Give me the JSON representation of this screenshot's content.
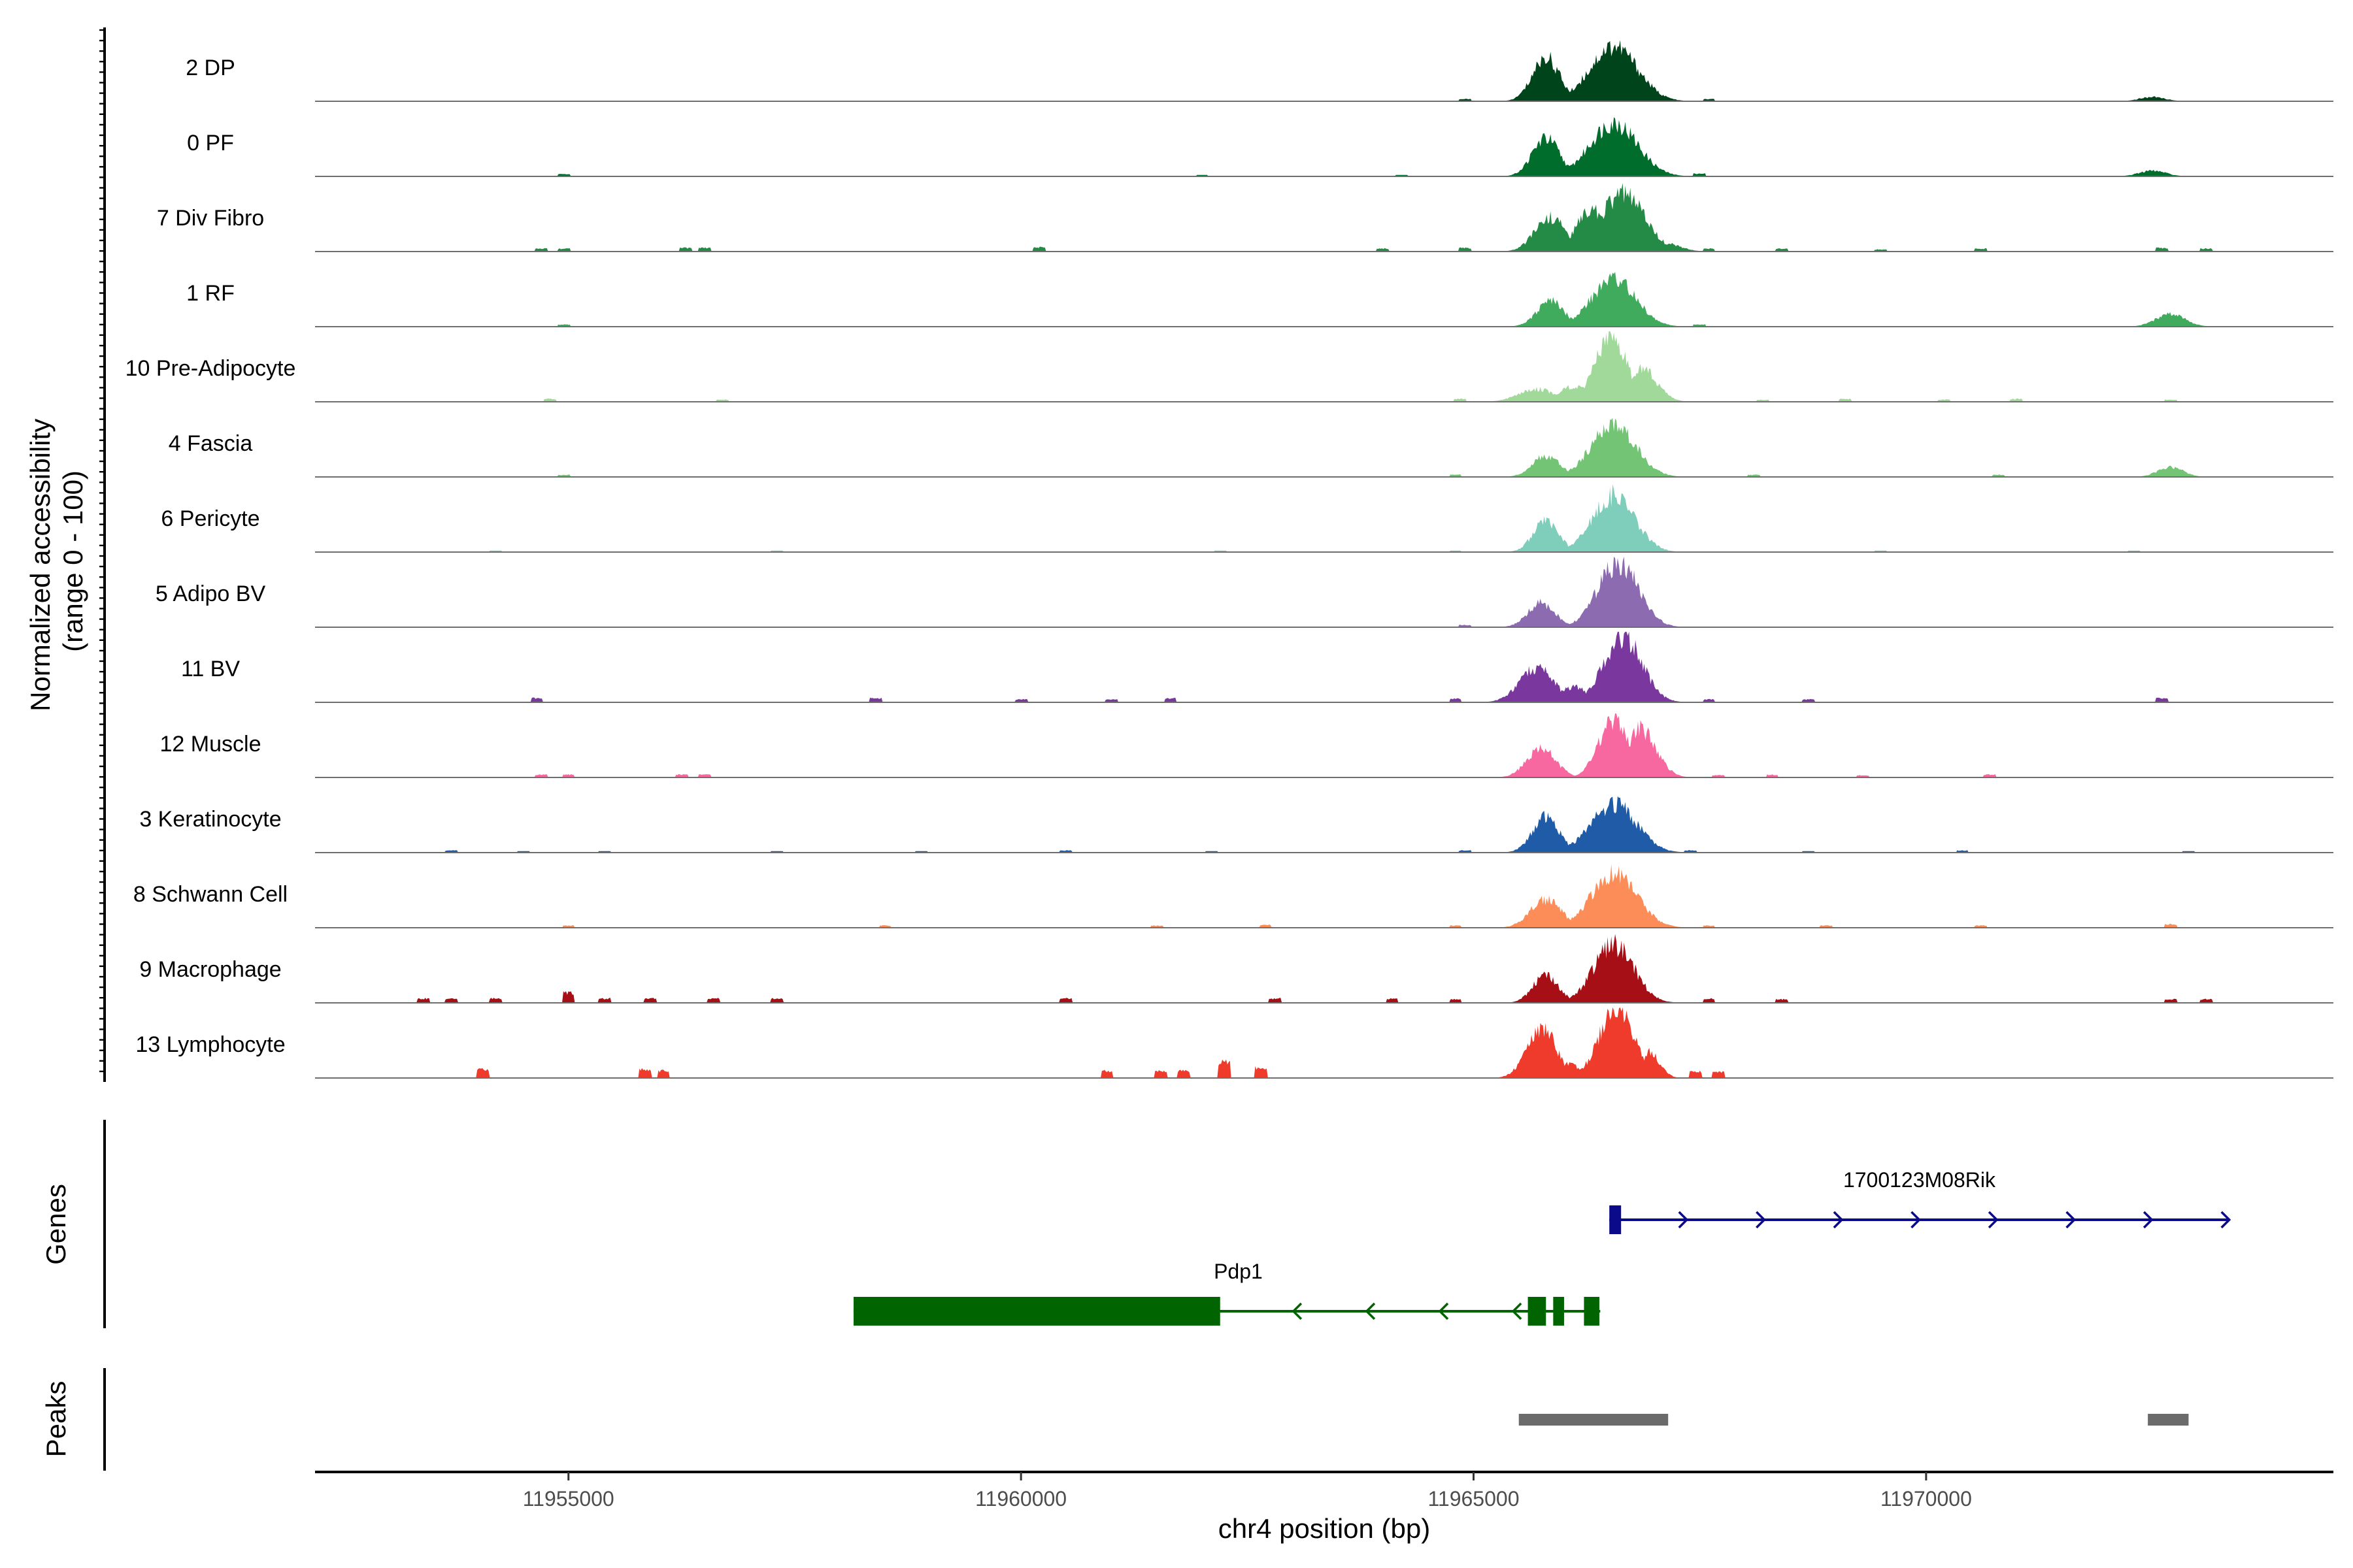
{
  "chart_data": {
    "type": "area",
    "title": "",
    "ylabel": "Normalized accessibility\n(range 0 - 100)",
    "xlabel": "chr4 position (bp)",
    "xlim": [
      11952200,
      11974500
    ],
    "ylim": [
      0,
      100
    ],
    "xticks": [
      11955000,
      11960000,
      11965000,
      11970000
    ],
    "tracks": [
      {
        "name": "2 DP",
        "color": "#00441b",
        "peaks": [
          [
            11965800,
            150,
            62
          ],
          [
            11966550,
            260,
            78
          ],
          [
            11972500,
            140,
            6
          ]
        ],
        "spikes": [
          [
            11964900,
            3
          ],
          [
            11967600,
            3
          ]
        ]
      },
      {
        "name": "0 PF",
        "color": "#006d2c",
        "peaks": [
          [
            11965800,
            150,
            54
          ],
          [
            11966550,
            260,
            76
          ],
          [
            11972500,
            150,
            8
          ]
        ],
        "spikes": [
          [
            11954950,
            3
          ],
          [
            11962000,
            2
          ],
          [
            11964200,
            2
          ],
          [
            11967500,
            4
          ]
        ]
      },
      {
        "name": "7 Div Fibro",
        "color": "#238b45",
        "peaks": [
          [
            11965850,
            170,
            48
          ],
          [
            11966300,
            160,
            60
          ],
          [
            11966650,
            240,
            82
          ],
          [
            11967100,
            170,
            12
          ]
        ],
        "spikes": [
          [
            11954700,
            4
          ],
          [
            11954950,
            4
          ],
          [
            11956300,
            5
          ],
          [
            11956500,
            5
          ],
          [
            11960200,
            6
          ],
          [
            11964000,
            4
          ],
          [
            11964900,
            5
          ],
          [
            11967600,
            4
          ],
          [
            11968400,
            4
          ],
          [
            11969500,
            3
          ],
          [
            11970600,
            4
          ],
          [
            11972600,
            5
          ],
          [
            11973100,
            4
          ]
        ]
      },
      {
        "name": "1 RF",
        "color": "#41ab5d",
        "peaks": [
          [
            11965850,
            150,
            36
          ],
          [
            11966550,
            240,
            68
          ],
          [
            11972700,
            160,
            18
          ]
        ],
        "spikes": [
          [
            11954950,
            3
          ],
          [
            11967500,
            3
          ]
        ]
      },
      {
        "name": "10 Pre-Adipocyte",
        "color": "#a1d99b",
        "peaks": [
          [
            11965700,
            200,
            18
          ],
          [
            11966100,
            150,
            22
          ],
          [
            11966520,
            170,
            92
          ],
          [
            11966850,
            170,
            48
          ]
        ],
        "spikes": [
          [
            11954800,
            4
          ],
          [
            11956700,
            3
          ],
          [
            11964850,
            4
          ],
          [
            11968200,
            3
          ],
          [
            11969100,
            4
          ],
          [
            11970200,
            3
          ],
          [
            11971000,
            4
          ],
          [
            11972700,
            3
          ]
        ]
      },
      {
        "name": "4 Fascia",
        "color": "#74c476",
        "peaks": [
          [
            11965800,
            150,
            30
          ],
          [
            11966550,
            240,
            74
          ],
          [
            11972700,
            140,
            14
          ]
        ],
        "spikes": [
          [
            11954950,
            3
          ],
          [
            11964800,
            3
          ],
          [
            11968100,
            3
          ],
          [
            11970800,
            3
          ]
        ]
      },
      {
        "name": "6 Pericyte",
        "color": "#7fcdbb",
        "peaks": [
          [
            11965800,
            140,
            44
          ],
          [
            11966550,
            230,
            80
          ]
        ],
        "spikes": [
          [
            11954200,
            2
          ],
          [
            11957300,
            2
          ],
          [
            11962200,
            2
          ],
          [
            11964800,
            2
          ],
          [
            11969500,
            2
          ],
          [
            11972300,
            2
          ]
        ]
      },
      {
        "name": "5 Adipo BV",
        "color": "#8c6bb1",
        "peaks": [
          [
            11965750,
            150,
            34
          ],
          [
            11966600,
            220,
            92
          ]
        ],
        "spikes": [
          [
            11964900,
            3
          ]
        ]
      },
      {
        "name": "11 BV",
        "color": "#7a379e",
        "peaks": [
          [
            11965700,
            190,
            48
          ],
          [
            11966100,
            150,
            22
          ],
          [
            11966650,
            210,
            92
          ]
        ],
        "spikes": [
          [
            11954650,
            6
          ],
          [
            11958400,
            6
          ],
          [
            11960000,
            4
          ],
          [
            11961650,
            6
          ],
          [
            11961000,
            4
          ],
          [
            11964800,
            5
          ],
          [
            11967600,
            4
          ],
          [
            11968700,
            4
          ],
          [
            11972600,
            6
          ]
        ]
      },
      {
        "name": "12 Muscle",
        "color": "#f768a1",
        "peaks": [
          [
            11965750,
            160,
            40
          ],
          [
            11966550,
            170,
            78
          ],
          [
            11966850,
            170,
            68
          ]
        ],
        "spikes": [
          [
            11954700,
            4
          ],
          [
            11955000,
            4
          ],
          [
            11956250,
            4
          ],
          [
            11956500,
            4
          ],
          [
            11967700,
            3
          ],
          [
            11968300,
            4
          ],
          [
            11969300,
            3
          ],
          [
            11970700,
            4
          ]
        ]
      },
      {
        "name": "3 Keratinocyte",
        "color": "#1f5ba6",
        "peaks": [
          [
            11965800,
            150,
            50
          ],
          [
            11966550,
            250,
            68
          ]
        ],
        "spikes": [
          [
            11953700,
            3
          ],
          [
            11954500,
            2
          ],
          [
            11955400,
            2
          ],
          [
            11957300,
            2
          ],
          [
            11958900,
            2
          ],
          [
            11960500,
            3
          ],
          [
            11962100,
            2
          ],
          [
            11964900,
            3
          ],
          [
            11967400,
            3
          ],
          [
            11968700,
            2
          ],
          [
            11970400,
            3
          ],
          [
            11972900,
            2
          ]
        ]
      },
      {
        "name": "8 Schwann Cell",
        "color": "#fc8d59",
        "peaks": [
          [
            11965800,
            170,
            40
          ],
          [
            11966550,
            250,
            76
          ]
        ],
        "spikes": [
          [
            11955000,
            3
          ],
          [
            11958500,
            3
          ],
          [
            11961500,
            3
          ],
          [
            11962700,
            4
          ],
          [
            11964800,
            3
          ],
          [
            11967600,
            3
          ],
          [
            11968900,
            3
          ],
          [
            11970600,
            3
          ],
          [
            11972700,
            5
          ]
        ]
      },
      {
        "name": "9 Macrophage",
        "color": "#a50f15",
        "peaks": [
          [
            11965800,
            140,
            40
          ],
          [
            11966550,
            220,
            82
          ]
        ],
        "spikes": [
          [
            11953400,
            6
          ],
          [
            11953700,
            6
          ],
          [
            11954200,
            6
          ],
          [
            11955000,
            14
          ],
          [
            11955400,
            6
          ],
          [
            11955900,
            6
          ],
          [
            11956600,
            6
          ],
          [
            11957300,
            6
          ],
          [
            11960500,
            6
          ],
          [
            11962800,
            6
          ],
          [
            11964100,
            6
          ],
          [
            11964800,
            5
          ],
          [
            11967600,
            6
          ],
          [
            11968400,
            5
          ],
          [
            11972700,
            5
          ],
          [
            11973100,
            5
          ]
        ]
      },
      {
        "name": "13 Lymphocyte",
        "color": "#ee3b2b",
        "peaks": [
          [
            11965750,
            160,
            72
          ],
          [
            11966050,
            120,
            20
          ],
          [
            11966580,
            190,
            98
          ],
          [
            11966950,
            110,
            36
          ]
        ],
        "spikes": [
          [
            11954050,
            12
          ],
          [
            11955850,
            12
          ],
          [
            11956050,
            10
          ],
          [
            11960950,
            10
          ],
          [
            11961550,
            10
          ],
          [
            11961800,
            10
          ],
          [
            11962250,
            22
          ],
          [
            11962650,
            14
          ],
          [
            11967450,
            9
          ],
          [
            11967700,
            9
          ]
        ]
      }
    ],
    "genes": [
      {
        "name": "1700123M08Rik",
        "strand": "+",
        "color": "#0a0a8a",
        "start": 11966500,
        "end": 11973350,
        "exons": [
          [
            11966500,
            11966630
          ]
        ]
      },
      {
        "name": "Pdp1",
        "strand": "-",
        "color": "#006400",
        "start": 11958150,
        "end": 11966400,
        "exons": [
          [
            11958150,
            11962200
          ],
          [
            11965600,
            11965800
          ],
          [
            11965880,
            11966000
          ],
          [
            11966220,
            11966390
          ]
        ]
      }
    ],
    "peaks_track": [
      [
        11965500,
        11967150
      ],
      [
        11972450,
        11972900
      ]
    ],
    "peaks_color": "#6b6b6b",
    "panel_labels": {
      "genes": "Genes",
      "peaks": "Peaks"
    }
  }
}
